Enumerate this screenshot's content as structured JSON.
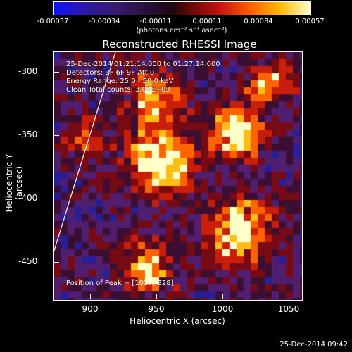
{
  "colorbar": {
    "ticks": [
      "-0.00057",
      "-0.00034",
      "-0.00011",
      "0.00011",
      "0.00034",
      "0.00057"
    ],
    "unit": "(photons cm⁻² s⁻¹ asec⁻²)"
  },
  "plot": {
    "title": "Reconstructed RHESSI Image",
    "info": {
      "time": "25-Dec-2014 01:21:14.000 to 01:27:14.000",
      "detectors": "Detectors: 3F 6F 9F Att 0",
      "energy": "Energy Range: 25.0 - 50.0 keV",
      "clean": "Clean      Total counts: 3.07E+03"
    },
    "peak": "Position of Peak = [1017,-328]",
    "xlabel": "Heliocentric X (arcsec)",
    "ylabel": "Heliocentric Y (arcsec)",
    "xticks": [
      "900",
      "950",
      "1000",
      "1050"
    ],
    "yticks": [
      "-300",
      "-350",
      "-400",
      "-450"
    ]
  },
  "timestamp": "25-Dec-2014 09:42"
}
